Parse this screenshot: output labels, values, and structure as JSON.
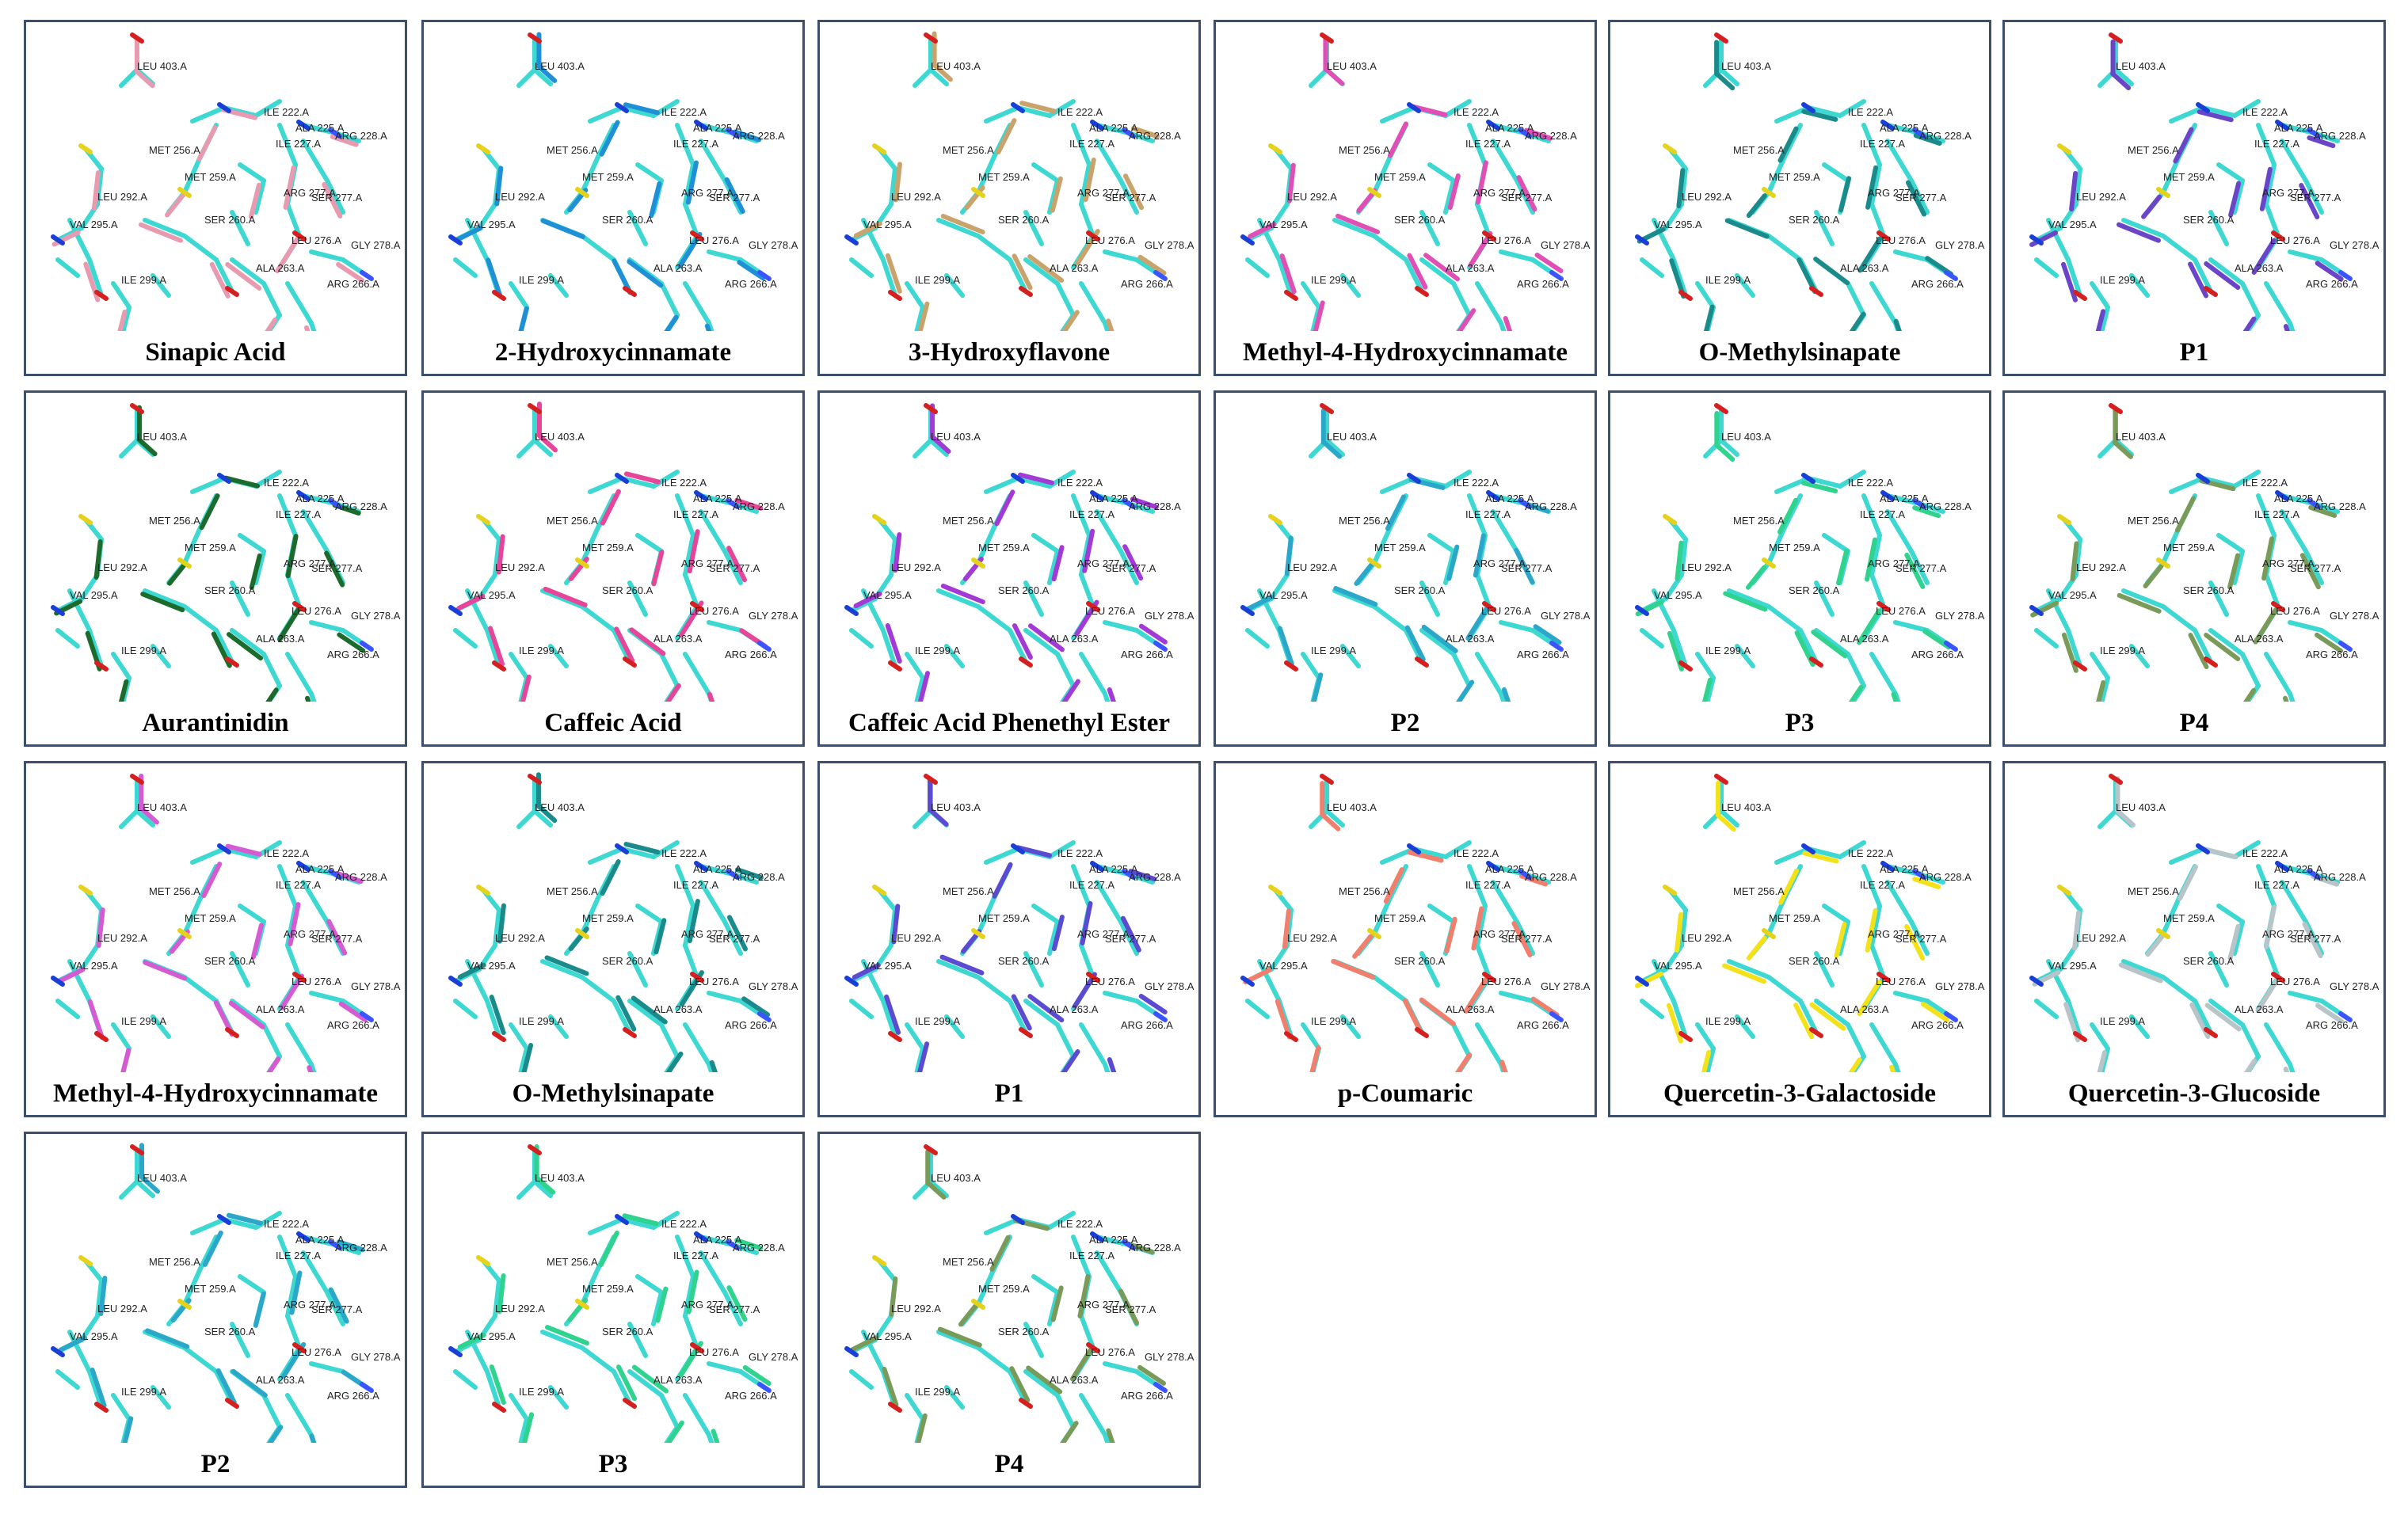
{
  "figure": {
    "residue_labels": [
      "LEU 403.A",
      "ILE 222.A",
      "ALA 225.A",
      "ARG 228.A",
      "ILE 227.A",
      "MET 256.A",
      "MET 259.A",
      "ARG 277.A",
      "SER 277.A",
      "LEU 292.A",
      "SER 260.A",
      "VAL 295.A",
      "LEU 276.A",
      "GLY 278.A",
      "ALA 263.A",
      "ILE 299.A",
      "ARG 266.A"
    ],
    "reference_color": "#3ed8d2",
    "panels": [
      {
        "caption": "Sinapic Acid",
        "ligand_color": "#e79ab0"
      },
      {
        "caption": "2-Hydroxycinnamate",
        "ligand_color": "#1f8fd6"
      },
      {
        "caption": "3-Hydroxyflavone",
        "ligand_color": "#c9a36b"
      },
      {
        "caption": "Methyl-4-Hydroxycinnamate",
        "ligand_color": "#e04fb6"
      },
      {
        "caption": "O-Methylsinapate",
        "ligand_color": "#1b8a8a"
      },
      {
        "caption": "P1",
        "ligand_color": "#6a45c8"
      },
      {
        "caption": "Aurantinidin",
        "ligand_color": "#1d6b2c"
      },
      {
        "caption": "Caffeic Acid",
        "ligand_color": "#e6459a"
      },
      {
        "caption": "Caffeic Acid Phenethyl Ester",
        "ligand_color": "#a23bd6"
      },
      {
        "caption": "P2",
        "ligand_color": "#2aa7c9"
      },
      {
        "caption": "P3",
        "ligand_color": "#2fd38e"
      },
      {
        "caption": "P4",
        "ligand_color": "#7a9a5a"
      },
      {
        "caption": "Methyl-4-Hydroxycinnamate",
        "ligand_color": "#d65ad2"
      },
      {
        "caption": "O-Methylsinapate",
        "ligand_color": "#1b8a8a"
      },
      {
        "caption": "P1",
        "ligand_color": "#5b4bd0"
      },
      {
        "caption": "p-Coumaric",
        "ligand_color": "#f07f6e"
      },
      {
        "caption": "Quercetin-3-Galactoside",
        "ligand_color": "#f3e21a"
      },
      {
        "caption": "Quercetin-3-Glucoside",
        "ligand_color": "#b9c4c8"
      },
      {
        "caption": "P2",
        "ligand_color": "#2aa7c9"
      },
      {
        "caption": "P3",
        "ligand_color": "#2fd38e"
      },
      {
        "caption": "P4",
        "ligand_color": "#7a9a5a"
      }
    ]
  }
}
